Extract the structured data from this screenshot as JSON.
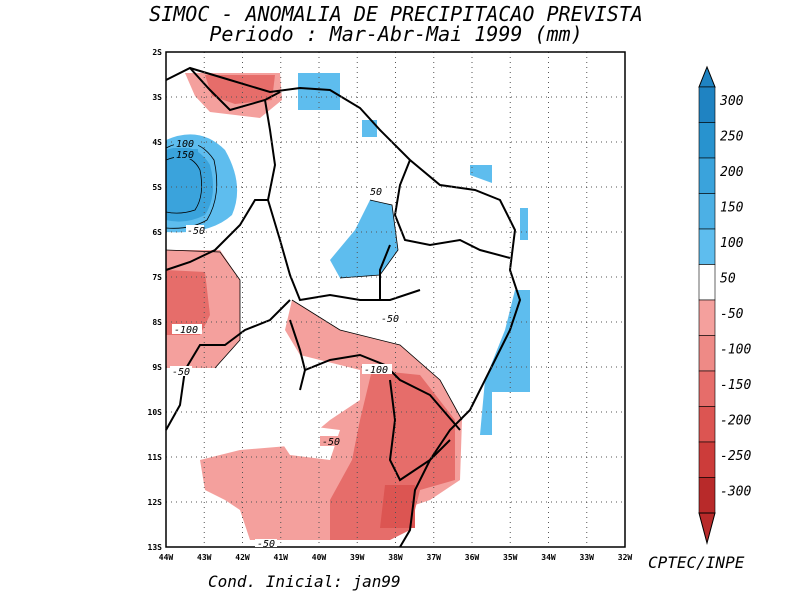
{
  "title": "SIMOC -  ANOMALIA DE PRECIPITACAO PREVISTA",
  "subtitle": "Periodo : Mar-Abr-Mai 1999 (mm)",
  "credit": "CPTEC/INPE",
  "initial_condition": "Cond. Inicial: jan99",
  "x_ticks": [
    "44W",
    "43W",
    "42W",
    "41W",
    "40W",
    "39W",
    "38W",
    "37W",
    "36W",
    "35W",
    "34W",
    "33W",
    "32W"
  ],
  "y_ticks": [
    "2S",
    "3S",
    "4S",
    "5S",
    "6S",
    "7S",
    "8S",
    "9S",
    "10S",
    "11S",
    "12S",
    "13S"
  ],
  "contour_labels": [
    "100",
    "150",
    "-50",
    "50",
    "-50",
    "-100",
    "-100",
    "-50",
    "-50",
    "-50"
  ],
  "colorbar": {
    "labels": [
      "300",
      "250",
      "200",
      "150",
      "100",
      "50",
      "-50",
      "-100",
      "-150",
      "-200",
      "-250",
      "-300"
    ],
    "colors": [
      "#1f83c2",
      "#2893cf",
      "#3aa3dc",
      "#4cb0e5",
      "#5ebdee",
      "#ffffff",
      "#f4a09d",
      "#ee8a86",
      "#e66d6a",
      "#dc5552",
      "#cc3c3a",
      "#b82a2a"
    ]
  },
  "chart_data": {
    "type": "heatmap",
    "title": "SIMOC - ANOMALIA DE PRECIPITACAO PREVISTA",
    "subtitle": "Periodo : Mar-Abr-Mai 1999 (mm)",
    "xlim": [
      "44W",
      "32W"
    ],
    "ylim": [
      "2S",
      "13S"
    ],
    "levels": [
      -300,
      -250,
      -200,
      -150,
      -100,
      -50,
      50,
      100,
      150,
      200,
      250,
      300
    ]
  }
}
